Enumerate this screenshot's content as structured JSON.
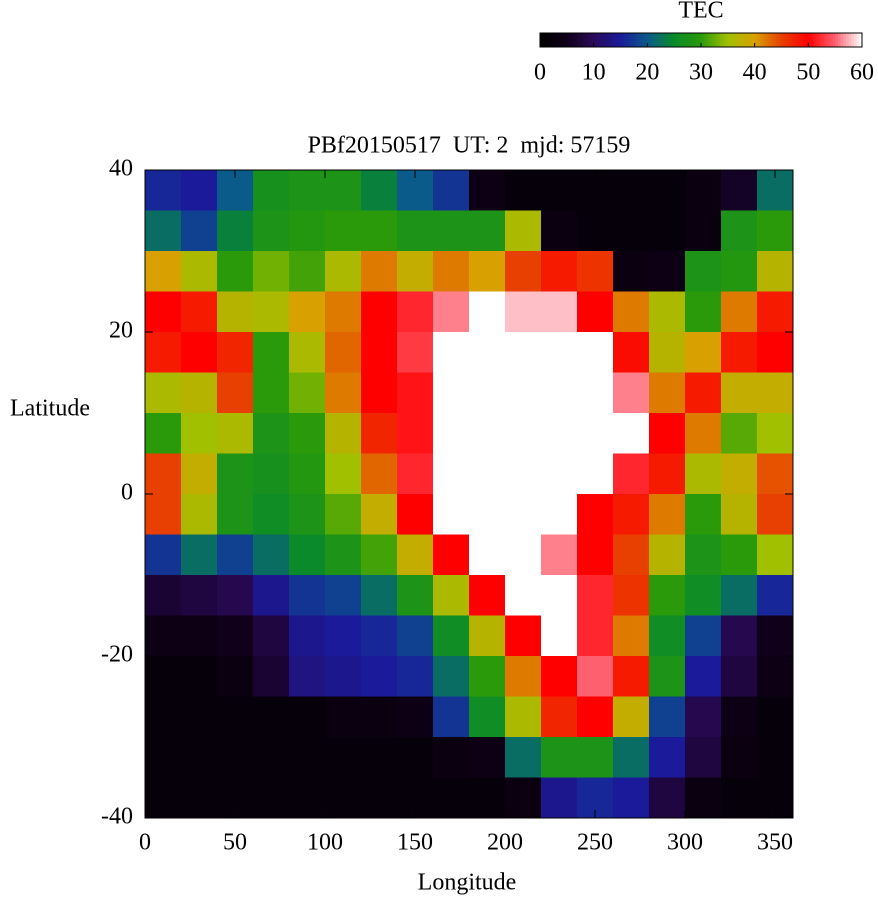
{
  "chart_data": {
    "type": "heatmap",
    "title": "PBf20150517  UT: 2  mjd: 57159",
    "x_label": "Longitude",
    "y_label": "Latitude",
    "colorbar_title": "TEC",
    "x": [
      10,
      30,
      50,
      70,
      90,
      110,
      130,
      150,
      170,
      190,
      210,
      230,
      250,
      270,
      290,
      310,
      330,
      350
    ],
    "y": [
      37.5,
      32.5,
      27.5,
      22.5,
      17.5,
      12.5,
      7.5,
      2.5,
      -2.5,
      -7.5,
      -12.5,
      -17.5,
      -22.5,
      -27.5,
      -32.5,
      -37.5
    ],
    "z": [
      [
        16,
        15,
        20,
        27,
        28,
        28,
        24,
        20,
        17,
        4,
        2,
        2,
        2,
        2,
        2,
        3,
        6,
        22
      ],
      [
        22,
        18,
        24,
        28,
        29,
        30,
        30,
        28,
        28,
        28,
        36,
        3,
        2,
        2,
        2,
        3,
        28,
        30
      ],
      [
        40,
        36,
        30,
        33,
        31,
        36,
        42,
        38,
        42,
        40,
        45,
        48,
        46,
        3,
        4,
        28,
        29,
        37
      ],
      [
        50,
        48,
        37,
        36,
        40,
        42,
        50,
        52,
        56,
        60,
        58,
        58,
        50,
        42,
        36,
        30,
        42,
        48
      ],
      [
        48,
        50,
        47,
        30,
        36,
        43,
        50,
        53,
        60,
        60,
        60,
        60,
        60,
        49,
        37,
        40,
        48,
        50
      ],
      [
        36,
        37,
        45,
        30,
        33,
        42,
        50,
        51,
        60,
        60,
        60,
        60,
        60,
        56,
        42,
        48,
        38,
        38
      ],
      [
        30,
        35,
        36,
        28,
        30,
        37,
        47,
        51,
        60,
        60,
        60,
        60,
        60,
        60,
        50,
        42,
        32,
        35
      ],
      [
        45,
        38,
        28,
        27,
        29,
        35,
        43,
        52,
        60,
        60,
        60,
        60,
        60,
        52,
        48,
        36,
        38,
        44
      ],
      [
        45,
        36,
        28,
        26,
        28,
        32,
        38,
        50,
        60,
        60,
        60,
        60,
        50,
        48,
        42,
        30,
        37,
        45
      ],
      [
        17,
        22,
        18,
        22,
        25,
        28,
        31,
        38,
        50,
        60,
        60,
        56,
        50,
        45,
        37,
        28,
        30,
        35
      ],
      [
        7,
        8,
        9,
        14,
        17,
        18,
        22,
        28,
        36,
        50,
        60,
        60,
        52,
        46,
        30,
        26,
        22,
        16
      ],
      [
        4,
        4,
        5,
        8,
        14,
        15,
        16,
        18,
        26,
        37,
        50,
        60,
        52,
        42,
        26,
        18,
        9,
        5
      ],
      [
        2,
        2,
        3,
        7,
        13,
        14,
        15,
        16,
        22,
        30,
        42,
        50,
        55,
        48,
        28,
        15,
        8,
        4
      ],
      [
        2,
        2,
        2,
        2,
        2,
        3,
        3,
        4,
        17,
        26,
        36,
        47,
        50,
        38,
        18,
        9,
        4,
        2
      ],
      [
        2,
        2,
        2,
        2,
        2,
        2,
        2,
        2,
        3,
        4,
        22,
        28,
        28,
        22,
        15,
        8,
        3,
        2
      ],
      [
        2,
        2,
        2,
        2,
        2,
        2,
        2,
        2,
        2,
        2,
        3,
        14,
        16,
        15,
        8,
        3,
        2,
        2
      ]
    ],
    "xlim": [
      0,
      360
    ],
    "ylim": [
      -40,
      40
    ],
    "zlim": [
      0,
      60
    ],
    "xticks": [
      0,
      50,
      100,
      150,
      200,
      250,
      300,
      350
    ],
    "yticks": [
      -40,
      -20,
      0,
      20,
      40
    ],
    "zticks": [
      0,
      10,
      20,
      30,
      40,
      50,
      60
    ],
    "colormap": [
      "#000000",
      "#10001a",
      "#2a0a5a",
      "#1a1a9a",
      "#0a5a8a",
      "#0a8a2a",
      "#2a9a0a",
      "#a0c000",
      "#d8a000",
      "#e84000",
      "#ff0000",
      "#ff6070",
      "#ffffff"
    ]
  }
}
